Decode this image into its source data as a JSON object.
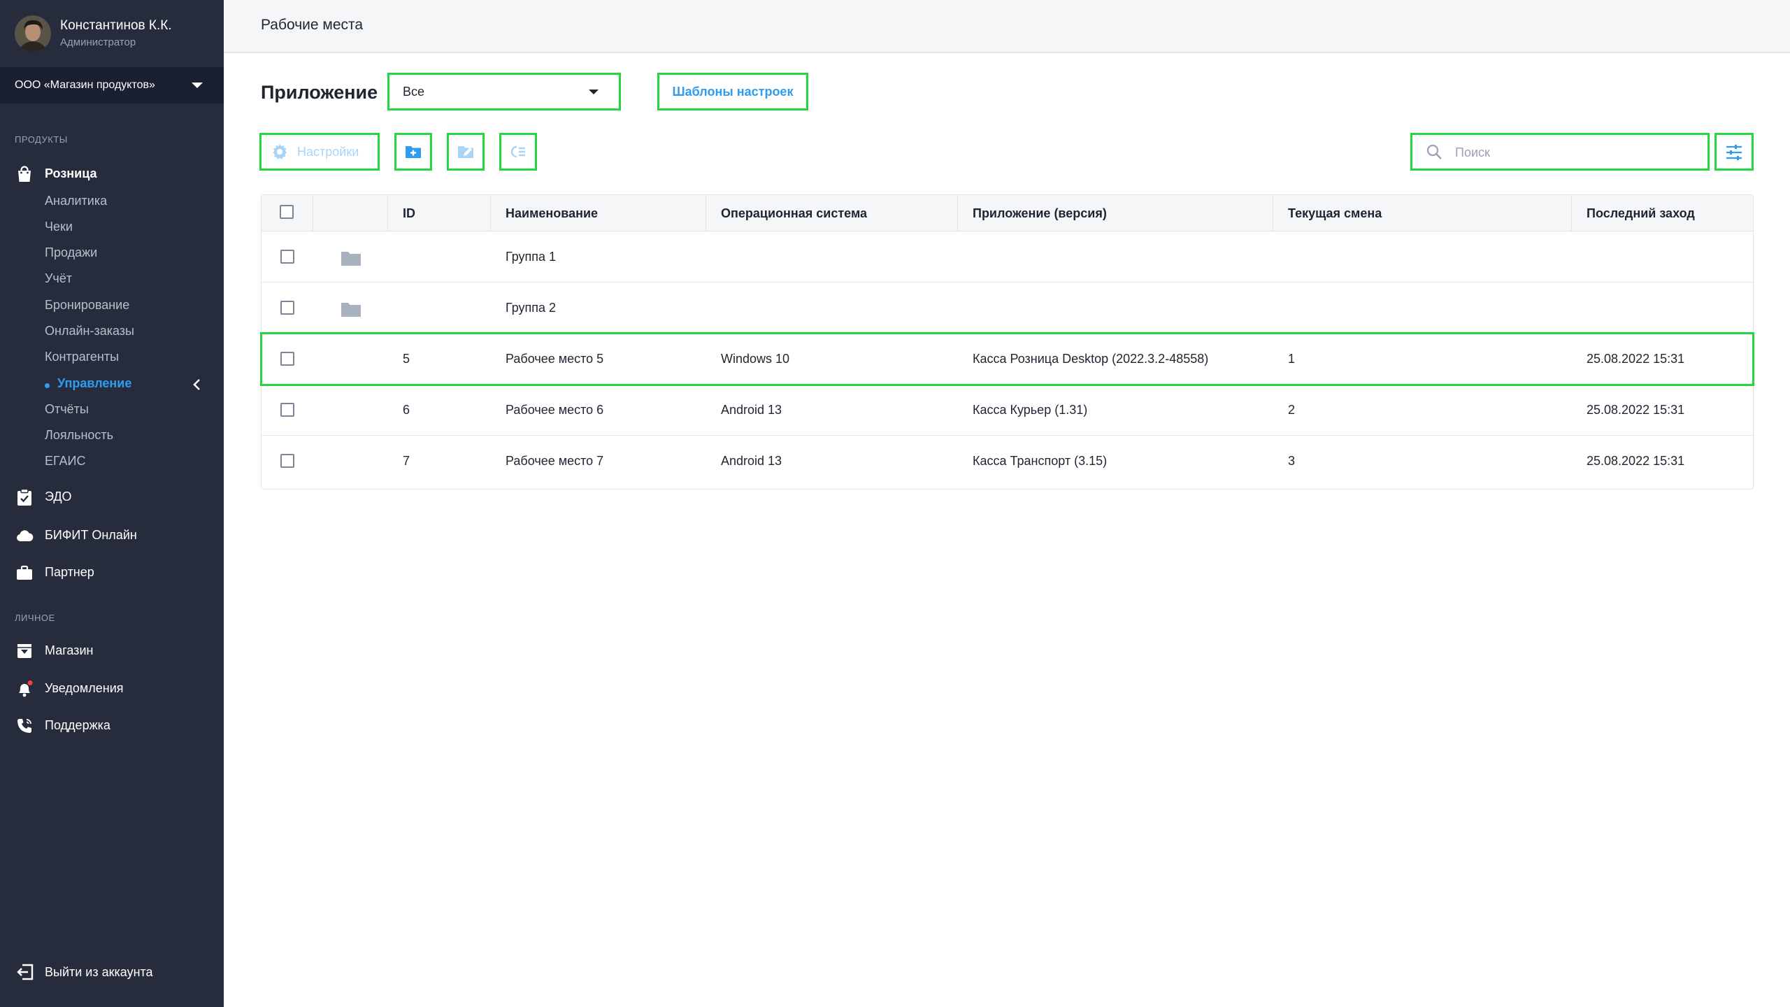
{
  "profile": {
    "name": "Константинов К.К.",
    "role": "Администратор"
  },
  "organization": {
    "selected": "ООО «Магазин продуктов»"
  },
  "sidebar": {
    "section_products": "ПРОДУКТЫ",
    "retail": {
      "label": "Розница",
      "items": [
        "Аналитика",
        "Чеки",
        "Продажи",
        "Учёт",
        "Бронирование",
        "Онлайн-заказы",
        "Контрагенты",
        "Управление",
        "Отчёты",
        "Лояльность",
        "ЕГАИС"
      ],
      "active_item": "Управление"
    },
    "edo": "ЭДО",
    "bifit": "БИФИТ Онлайн",
    "partner": "Партнер",
    "section_personal": "ЛИЧНОЕ",
    "shop": "Магазин",
    "notifications": "Уведомления",
    "support": "Поддержка",
    "logout": "Выйти из аккаунта"
  },
  "header": {
    "title": "Рабочие места"
  },
  "filters": {
    "app_label": "Приложение",
    "app_selected": "Все",
    "templates_button": "Шаблоны настроек"
  },
  "toolbar": {
    "settings_label": "Настройки",
    "search_placeholder": "Поиск"
  },
  "table": {
    "columns": [
      "ID",
      "Наименование",
      "Операционная система",
      "Приложение (версия)",
      "Текущая смена",
      "Последний заход"
    ],
    "groups": [
      "Группа 1",
      "Группа 2"
    ],
    "rows": [
      {
        "id": "5",
        "name": "Рабочее место 5",
        "os": "Windows 10",
        "app": "Касса Розница Desktop (2022.3.2-48558)",
        "shift": "1",
        "last": "25.08.2022 15:31"
      },
      {
        "id": "6",
        "name": "Рабочее место 6",
        "os": "Android 13",
        "app": "Касса Курьер (1.31)",
        "shift": "2",
        "last": "25.08.2022 15:31"
      },
      {
        "id": "7",
        "name": "Рабочее место 7",
        "os": "Android 13",
        "app": "Касса Транспорт (3.15)",
        "shift": "3",
        "last": "25.08.2022 15:31"
      }
    ]
  },
  "colors": {
    "sidebar_bg": "#262c3c",
    "accent": "#2f9cf0",
    "highlight": "#26d640"
  },
  "icons": [
    "avatar",
    "caret-down-icon",
    "shopping-bag-icon",
    "clipboard-check-icon",
    "cloud-icon",
    "briefcase-icon",
    "store-icon",
    "bell-icon",
    "phone-icon",
    "logout-icon",
    "gear-icon",
    "folder-add-icon",
    "folder-edit-icon",
    "list-indent-icon",
    "search-icon",
    "sliders-icon",
    "folder-icon",
    "chevron-left-icon"
  ]
}
